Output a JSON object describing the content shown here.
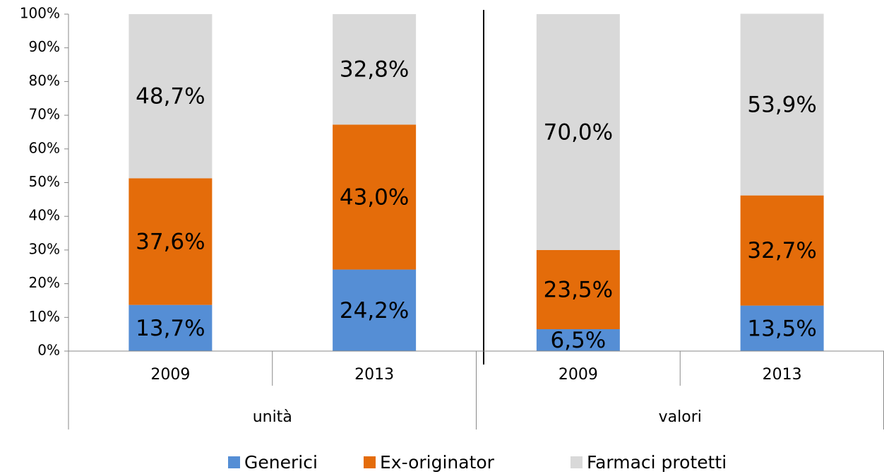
{
  "chart_data": {
    "type": "stacked-bar",
    "categories": [
      "2009",
      "2013",
      "2009",
      "2013"
    ],
    "groups": [
      "unità",
      "valori"
    ],
    "series": [
      {
        "name": "Generici",
        "color": "#558ed5",
        "values": [
          13.7,
          24.2,
          6.5,
          13.5
        ],
        "value_labels": [
          "13,7%",
          "24,2%",
          "6,5%",
          "13,5%"
        ]
      },
      {
        "name": "Ex-originator",
        "color": "#e46c0a",
        "values": [
          37.6,
          43.0,
          23.5,
          32.7
        ],
        "value_labels": [
          "37,6%",
          "43,0%",
          "23,5%",
          "32,7%"
        ]
      },
      {
        "name": "Farmaci protetti",
        "color": "#d9d9d9",
        "values": [
          48.7,
          32.8,
          70.0,
          53.9
        ],
        "value_labels": [
          "48,7%",
          "32,8%",
          "70,0%",
          "53,9%"
        ]
      }
    ],
    "ylim": [
      0,
      100
    ],
    "yticks": [
      {
        "value": 0,
        "label": "0%"
      },
      {
        "value": 10,
        "label": "10%"
      },
      {
        "value": 20,
        "label": "20%"
      },
      {
        "value": 30,
        "label": "30%"
      },
      {
        "value": 40,
        "label": "40%"
      },
      {
        "value": 50,
        "label": "50%"
      },
      {
        "value": 60,
        "label": "60%"
      },
      {
        "value": 70,
        "label": "70%"
      },
      {
        "value": 80,
        "label": "80%"
      },
      {
        "value": 90,
        "label": "90%"
      },
      {
        "value": 100,
        "label": "100%"
      }
    ],
    "legend": "bottom"
  }
}
